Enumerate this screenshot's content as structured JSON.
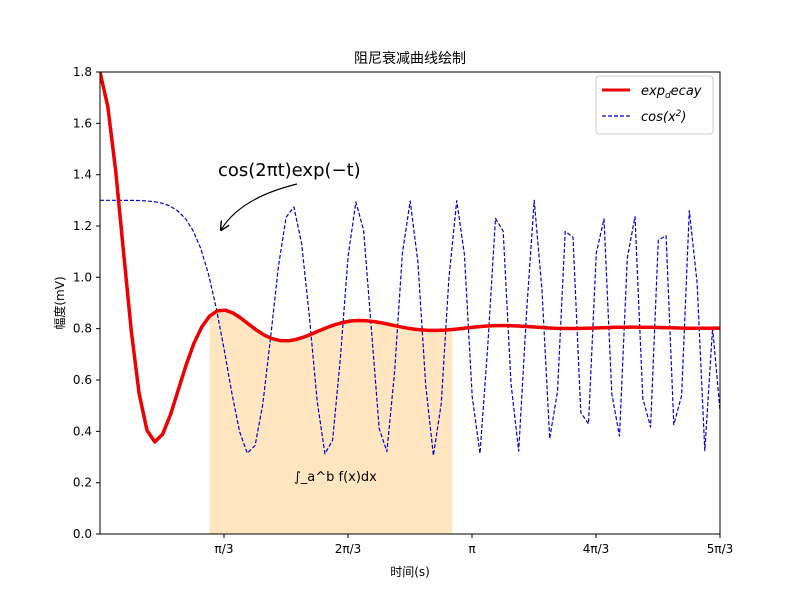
{
  "chart_data": {
    "type": "line",
    "title": "阻尼衰减曲线绘制",
    "xlabel": "时间(s)",
    "ylabel": "幅度(mV)",
    "xlim": [
      0,
      5.236
    ],
    "ylim": [
      0,
      1.8
    ],
    "x_ticks": [
      {
        "value": 1.0472,
        "label": "π/3"
      },
      {
        "value": 2.0944,
        "label": "2π/3"
      },
      {
        "value": 3.1416,
        "label": "π"
      },
      {
        "value": 4.1888,
        "label": "4π/3"
      },
      {
        "value": 5.236,
        "label": "5π/3"
      }
    ],
    "y_ticks": [
      {
        "value": 0.0,
        "label": "0.0"
      },
      {
        "value": 0.2,
        "label": "0.2"
      },
      {
        "value": 0.4,
        "label": "0.4"
      },
      {
        "value": 0.6,
        "label": "0.6"
      },
      {
        "value": 0.8,
        "label": "0.8"
      },
      {
        "value": 1.0,
        "label": "1.0"
      },
      {
        "value": 1.2,
        "label": "1.2"
      },
      {
        "value": 1.4,
        "label": "1.4"
      },
      {
        "value": 1.6,
        "label": "1.6"
      },
      {
        "value": 1.8,
        "label": "1.8"
      }
    ],
    "grid": false,
    "legend_position": "top-right",
    "series": [
      {
        "name": "exp_decay",
        "label_main": "exp",
        "label_sub": "d",
        "label_rest": "ecay",
        "color": "#ee0000",
        "style": "solid",
        "x": [
          0.0,
          0.0661,
          0.1322,
          0.1983,
          0.2644,
          0.3306,
          0.3967,
          0.4628,
          0.5289,
          0.595,
          0.6611,
          0.7272,
          0.7933,
          0.8595,
          0.9256,
          0.9917,
          1.0578,
          1.1239,
          1.19,
          1.2561,
          1.3222,
          1.3884,
          1.4545,
          1.5206,
          1.5867,
          1.6528,
          1.7189,
          1.785,
          1.8511,
          1.9173,
          1.9834,
          2.0495,
          2.1156,
          2.1817,
          2.2478,
          2.3139,
          2.38,
          2.4462,
          2.5123,
          2.5784,
          2.6445,
          2.7106,
          2.7767,
          2.8428,
          2.909,
          2.9751,
          3.0412,
          3.1073,
          3.1734,
          3.2395,
          3.3056,
          3.3717,
          3.4379,
          3.504,
          3.5701,
          3.6362,
          3.7023,
          3.7684,
          3.8345,
          3.9006,
          3.9668,
          4.0329,
          4.099,
          4.1651,
          4.2312,
          4.2973,
          4.3634,
          4.4295,
          4.4957,
          4.5618,
          4.6279,
          4.694,
          4.7601,
          4.8262,
          4.8923,
          4.9584,
          5.0246,
          5.0907,
          5.1568,
          5.2229,
          5.236
        ],
        "y": [
          1.8,
          1.665,
          1.4141,
          1.0999,
          0.7904,
          0.5474,
          0.4038,
          0.3587,
          0.3889,
          0.4652,
          0.5618,
          0.6586,
          0.7427,
          0.8069,
          0.8489,
          0.8696,
          0.8721,
          0.8609,
          0.8411,
          0.8175,
          0.7943,
          0.7747,
          0.7608,
          0.7534,
          0.7526,
          0.7575,
          0.7668,
          0.7788,
          0.7919,
          0.8046,
          0.8156,
          0.8242,
          0.8297,
          0.8319,
          0.8311,
          0.8277,
          0.8224,
          0.8161,
          0.8095,
          0.8035,
          0.7986,
          0.7952,
          0.7934,
          0.7932,
          0.7945,
          0.7969,
          0.8,
          0.8034,
          0.8066,
          0.8092,
          0.811,
          0.8119,
          0.8118,
          0.8109,
          0.8094,
          0.8074,
          0.8054,
          0.8035,
          0.802,
          0.801,
          0.8006,
          0.8007,
          0.8013,
          0.8022,
          0.8033,
          0.8043,
          0.8052,
          0.8058,
          0.8061,
          0.8059,
          0.8055,
          0.8048,
          0.804,
          0.8032,
          0.8025,
          0.8019,
          0.8017,
          0.8017,
          0.8019,
          0.8023,
          0.8024
        ]
      },
      {
        "name": "cos_x2",
        "label_main": "cos(x",
        "label_sup": "2",
        "label_rest": ")",
        "color": "#0000cc",
        "style": "dashed",
        "x": [
          0.0,
          0.0655,
          0.131,
          0.1965,
          0.2619,
          0.3274,
          0.3929,
          0.4584,
          0.5239,
          0.5894,
          0.6549,
          0.7203,
          0.7858,
          0.8513,
          0.9168,
          0.9823,
          1.0478,
          1.1133,
          1.1787,
          1.2442,
          1.3097,
          1.3752,
          1.4407,
          1.5062,
          1.5717,
          1.6371,
          1.7026,
          1.7681,
          1.8336,
          1.8991,
          1.9646,
          2.0301,
          2.0955,
          2.161,
          2.2265,
          2.292,
          2.3575,
          2.423,
          2.4885,
          2.5539,
          2.6194,
          2.6849,
          2.7504,
          2.8159,
          2.8814,
          2.9469,
          3.0123,
          3.0778,
          3.1433,
          3.2088,
          3.2743,
          3.3398,
          3.4053,
          3.4707,
          3.5362,
          3.6017,
          3.6672,
          3.7327,
          3.7982,
          3.8637,
          3.9291,
          3.9946,
          4.0601,
          4.1256,
          4.1911,
          4.2566,
          4.3221,
          4.3875,
          4.453,
          4.5185,
          4.584,
          4.6495,
          4.715,
          4.7805,
          4.8459,
          4.9114,
          4.9769,
          5.0424,
          5.1079,
          5.1734,
          5.236
        ],
        "y": [
          1.3,
          1.3,
          1.3,
          1.2999,
          1.2997,
          1.2992,
          1.2976,
          1.2945,
          1.2887,
          1.2782,
          1.2598,
          1.2297,
          1.1823,
          1.1119,
          1.0111,
          0.8789,
          0.72,
          0.55,
          0.3987,
          0.3148,
          0.3447,
          0.5056,
          0.7654,
          1.0413,
          1.2338,
          1.2742,
          1.1321,
          0.8463,
          0.5196,
          0.3129,
          0.3646,
          0.6862,
          1.0819,
          1.2934,
          1.1841,
          0.7976,
          0.4105,
          0.3211,
          0.6362,
          1.0942,
          1.2974,
          1.0595,
          0.5796,
          0.3064,
          0.5064,
          0.9958,
          1.2985,
          1.0895,
          0.5349,
          0.3139,
          0.7289,
          1.2296,
          1.1795,
          0.5864,
          0.3228,
          0.8592,
          1.2998,
          0.9494,
          0.3716,
          0.5553,
          1.1787,
          1.1566,
          0.4734,
          0.4289,
          1.0949,
          1.2276,
          0.5459,
          0.3816,
          1.0755,
          1.2362,
          0.5288,
          0.4166,
          1.1451,
          1.1621,
          0.4257,
          0.5387,
          1.2599,
          0.9784,
          0.3251,
          0.8035,
          0.48
        ]
      }
    ],
    "fill_region": {
      "x_start": 0.8632,
      "x_end": 2.9751,
      "color": "#ffe6c0",
      "label": "∫_a^b f(x)dx"
    },
    "annotation": {
      "text": "cos(2πt)exp(−t)",
      "point_x": 1.02,
      "point_y": 1.16
    }
  }
}
